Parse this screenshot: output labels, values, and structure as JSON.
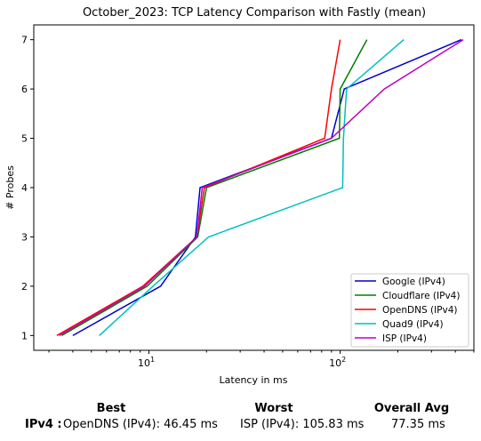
{
  "chart_data": {
    "type": "line",
    "title": "October_2023: TCP Latency Comparison with Fastly (mean)",
    "xlabel": "Latency in ms",
    "ylabel": "# Probes",
    "xscale": "log",
    "xlim": [
      2.5,
      500
    ],
    "ylim": [
      0.7,
      7.3
    ],
    "x_ticks": [
      {
        "value": 10,
        "base": "10",
        "exp": "1"
      },
      {
        "value": 100,
        "base": "10",
        "exp": "2"
      }
    ],
    "y_ticks": [
      "1",
      "2",
      "3",
      "4",
      "5",
      "6",
      "7"
    ],
    "grid": false,
    "legend_position": "lower right",
    "series": [
      {
        "name": "Google (IPv4)",
        "color": "#0000cc",
        "x": [
          4.0,
          11.5,
          17.5,
          18.5,
          90,
          105,
          430
        ],
        "y": [
          1,
          2,
          3,
          4,
          5,
          6,
          7
        ]
      },
      {
        "name": "Cloudflare (IPv4)",
        "color": "#008000",
        "x": [
          3.5,
          9.8,
          18,
          20,
          99,
          100,
          138
        ],
        "y": [
          1,
          2,
          3,
          4,
          5,
          6,
          7
        ]
      },
      {
        "name": "OpenDNS (IPv4)",
        "color": "#ff0000",
        "x": [
          3.3,
          9.3,
          17.8,
          19.5,
          83,
          90,
          100
        ],
        "y": [
          1,
          2,
          3,
          4,
          5,
          6,
          7
        ]
      },
      {
        "name": "Quad9 (IPv4)",
        "color": "#00bfbf",
        "x": [
          5.5,
          10.5,
          20.5,
          103,
          104,
          108,
          215
        ],
        "y": [
          1,
          2,
          3,
          4,
          5,
          6,
          7
        ]
      },
      {
        "name": "ISP (IPv4)",
        "color": "#bf00bf",
        "x": [
          3.4,
          9.5,
          17.8,
          19,
          90,
          170,
          440
        ],
        "y": [
          1,
          2,
          3,
          4,
          5,
          6,
          7
        ]
      }
    ]
  },
  "summary": {
    "best_header": "Best",
    "worst_header": "Worst",
    "avg_header": "Overall Avg",
    "row_label": "IPv4 :",
    "best_value": "OpenDNS (IPv4): 46.45 ms",
    "worst_value": "ISP (IPv4): 105.83 ms",
    "avg_value": "77.35 ms"
  }
}
